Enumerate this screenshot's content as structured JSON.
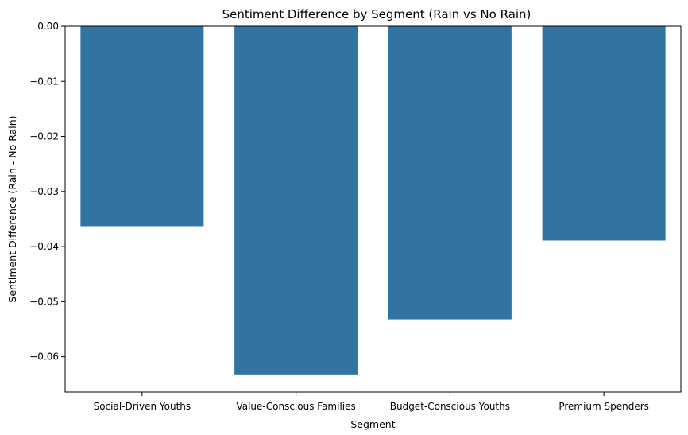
{
  "chart_data": {
    "type": "bar",
    "title": "Sentiment Difference by Segment (Rain vs No Rain)",
    "xlabel": "Segment",
    "ylabel": "Sentiment Difference (Rain - No Rain)",
    "categories": [
      "Social-Driven Youths",
      "Value-Conscious Families",
      "Budget-Conscious Youths",
      "Premium Spenders"
    ],
    "values": [
      -0.0363,
      -0.0632,
      -0.0532,
      -0.0389
    ],
    "ylim": [
      -0.0664,
      0.0
    ],
    "yticks": [
      0.0,
      -0.01,
      -0.02,
      -0.03,
      -0.04,
      -0.05,
      -0.06
    ],
    "ytick_labels": [
      "0.00",
      "−0.01",
      "−0.02",
      "−0.03",
      "−0.04",
      "−0.05",
      "−0.06"
    ],
    "bar_color": "#3274a1",
    "grid": false,
    "legend": "none"
  }
}
